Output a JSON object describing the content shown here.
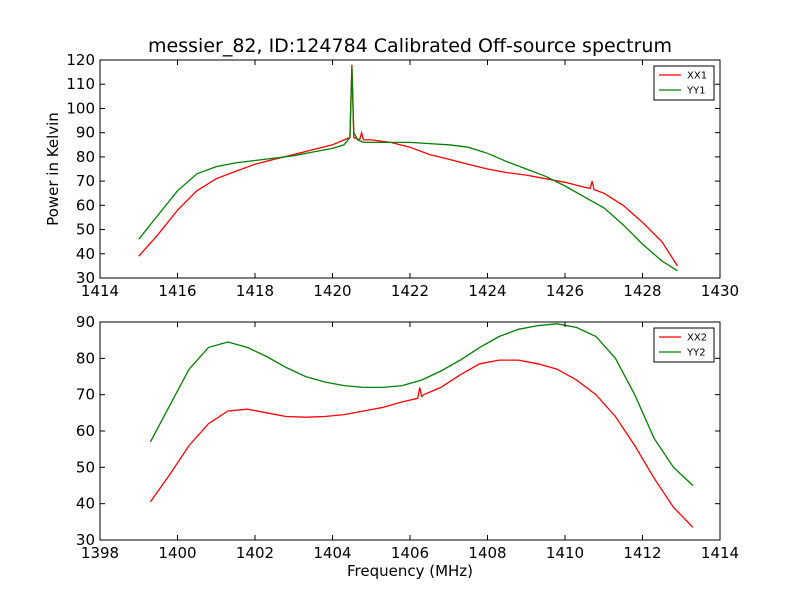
{
  "figure": {
    "title": "messier_82, ID:124784 Calibrated Off-source spectrum"
  },
  "chart_data": [
    {
      "type": "line",
      "title": "messier_82, ID:124784 Calibrated Off-source spectrum",
      "xlabel": "",
      "ylabel": "Power in Kelvin",
      "xlim": [
        1414,
        1430
      ],
      "ylim": [
        30,
        120
      ],
      "xticks": [
        "1414",
        "1416",
        "1418",
        "1420",
        "1422",
        "1424",
        "1426",
        "1428",
        "1430"
      ],
      "yticks": [
        "30",
        "40",
        "50",
        "60",
        "70",
        "80",
        "90",
        "100",
        "110",
        "120"
      ],
      "legend_position": "top-right",
      "grid": false,
      "series": [
        {
          "name": "XX1",
          "color": "#ff0000",
          "x": [
            1415.0,
            1415.5,
            1416.0,
            1416.5,
            1417.0,
            1417.5,
            1418.0,
            1418.5,
            1419.0,
            1419.5,
            1420.0,
            1420.3,
            1420.45,
            1420.5,
            1420.55,
            1420.7,
            1420.75,
            1420.8,
            1421.0,
            1421.5,
            1422.0,
            1422.5,
            1423.0,
            1423.5,
            1424.0,
            1424.5,
            1425.0,
            1425.5,
            1426.0,
            1426.5,
            1426.65,
            1426.7,
            1426.75,
            1427.0,
            1427.5,
            1428.0,
            1428.5,
            1428.9
          ],
          "y": [
            39,
            48,
            58,
            66,
            71,
            74,
            77,
            79,
            81,
            83,
            85,
            87,
            88,
            118,
            88,
            87,
            90,
            87,
            87,
            86,
            84,
            81,
            79,
            77,
            75,
            73.5,
            72.5,
            71,
            69.5,
            67.5,
            67,
            70,
            66.5,
            65,
            60,
            53,
            45,
            35
          ]
        },
        {
          "name": "YY1",
          "color": "#008000",
          "x": [
            1415.0,
            1415.5,
            1416.0,
            1416.5,
            1417.0,
            1417.5,
            1418.0,
            1418.5,
            1419.0,
            1419.5,
            1420.0,
            1420.3,
            1420.45,
            1420.5,
            1420.55,
            1420.65,
            1420.8,
            1421.0,
            1421.5,
            1422.0,
            1422.5,
            1423.0,
            1423.5,
            1424.0,
            1424.5,
            1425.0,
            1425.5,
            1426.0,
            1426.5,
            1427.0,
            1427.5,
            1428.0,
            1428.5,
            1428.9
          ],
          "y": [
            46,
            56,
            66,
            73,
            76,
            77.5,
            78.5,
            79.5,
            80.5,
            82,
            83.5,
            85,
            88,
            117,
            90,
            87,
            86,
            86,
            86,
            86,
            85.5,
            85,
            84,
            81.5,
            78,
            75,
            72,
            68,
            63.5,
            59,
            52,
            44,
            37,
            33
          ]
        }
      ]
    },
    {
      "type": "line",
      "title": "",
      "xlabel": "Frequency (MHz)",
      "ylabel": "",
      "xlim": [
        1398,
        1414
      ],
      "ylim": [
        30,
        90
      ],
      "xticks": [
        "1398",
        "1400",
        "1402",
        "1404",
        "1406",
        "1408",
        "1410",
        "1412",
        "1414"
      ],
      "yticks": [
        "30",
        "40",
        "50",
        "60",
        "70",
        "80",
        "90"
      ],
      "legend_position": "top-right",
      "grid": false,
      "series": [
        {
          "name": "XX2",
          "color": "#ff0000",
          "x": [
            1399.3,
            1399.8,
            1400.3,
            1400.8,
            1401.3,
            1401.8,
            1402.3,
            1402.8,
            1403.3,
            1403.8,
            1404.3,
            1404.8,
            1405.3,
            1405.8,
            1406.2,
            1406.25,
            1406.3,
            1406.35,
            1406.8,
            1407.3,
            1407.8,
            1408.3,
            1408.8,
            1409.3,
            1409.8,
            1410.3,
            1410.8,
            1411.3,
            1411.8,
            1412.3,
            1412.8,
            1413.3
          ],
          "y": [
            40.5,
            48,
            56,
            62,
            65.5,
            66,
            65,
            64,
            63.8,
            64,
            64.5,
            65.5,
            66.5,
            68,
            69,
            72,
            69.5,
            70,
            72,
            75.5,
            78.5,
            79.5,
            79.5,
            78.5,
            77,
            74,
            70,
            64,
            56,
            47,
            39,
            33.5
          ]
        },
        {
          "name": "YY2",
          "color": "#008000",
          "x": [
            1399.3,
            1399.8,
            1400.3,
            1400.8,
            1401.3,
            1401.8,
            1402.3,
            1402.8,
            1403.3,
            1403.8,
            1404.3,
            1404.8,
            1405.3,
            1405.8,
            1406.3,
            1406.8,
            1407.3,
            1407.8,
            1408.3,
            1408.8,
            1409.3,
            1409.8,
            1410.3,
            1410.8,
            1411.3,
            1411.8,
            1412.3,
            1412.8,
            1413.3
          ],
          "y": [
            57,
            67,
            77,
            83,
            84.5,
            83,
            80.5,
            77.5,
            75,
            73.5,
            72.5,
            72,
            72,
            72.5,
            74,
            76.5,
            79.5,
            83,
            86,
            88,
            89,
            89.5,
            88.5,
            86,
            80,
            70,
            58,
            50,
            45
          ]
        }
      ]
    }
  ]
}
